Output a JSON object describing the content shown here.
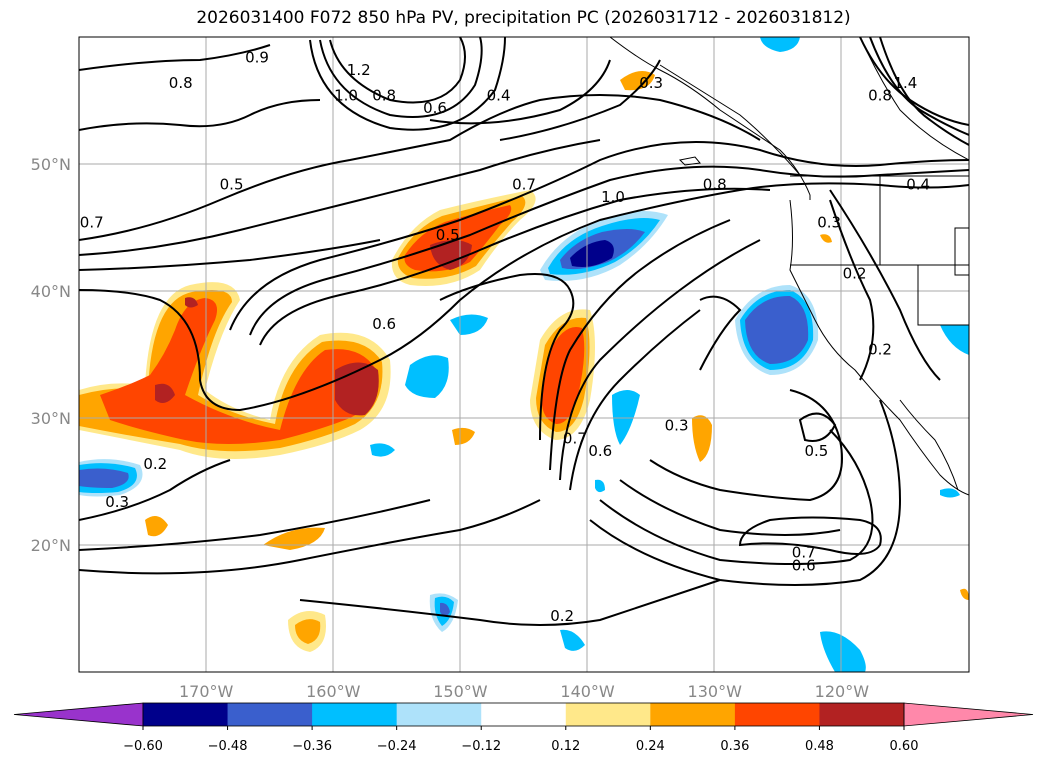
{
  "title": "2026031400 F072 850 hPa PV, precipitation PC (2026031712 - 2026031812)",
  "lat_labels": [
    {
      "text": "50°N",
      "lat": 50
    },
    {
      "text": "40°N",
      "lat": 40
    },
    {
      "text": "30°N",
      "lat": 30
    },
    {
      "text": "20°N",
      "lat": 20
    }
  ],
  "lon_labels": [
    {
      "text": "170°W",
      "lon": -170
    },
    {
      "text": "160°W",
      "lon": -160
    },
    {
      "text": "150°W",
      "lon": -150
    },
    {
      "text": "140°W",
      "lon": -140
    },
    {
      "text": "130°W",
      "lon": -130
    },
    {
      "text": "120°W",
      "lon": -120
    }
  ],
  "map_extent": {
    "lon_min": -180,
    "lon_max": -110,
    "lat_min": 10,
    "lat_max": 60
  },
  "colorbar": {
    "tick_labels": [
      "−0.60",
      "−0.48",
      "−0.36",
      "−0.24",
      "−0.12",
      "0.12",
      "0.24",
      "0.36",
      "0.48",
      "0.60"
    ],
    "colors": [
      "#9933cc",
      "#00008b",
      "#3a5fcd",
      "#00bfff",
      "#aee2fa",
      "#ffffff",
      "#ffe88a",
      "#ffa500",
      "#ff4500",
      "#b22222",
      "#ff88aa"
    ]
  },
  "contour_labels": [
    {
      "text": "1.2",
      "lon": -158,
      "lat": 57
    },
    {
      "text": "1.0",
      "lon": -159,
      "lat": 55
    },
    {
      "text": "0.8",
      "lon": -156,
      "lat": 55
    },
    {
      "text": "0.6",
      "lon": -152,
      "lat": 54
    },
    {
      "text": "0.4",
      "lon": -147,
      "lat": 55
    },
    {
      "text": "0.9",
      "lon": -166,
      "lat": 58
    },
    {
      "text": "0.8",
      "lon": -172,
      "lat": 56
    },
    {
      "text": "0.5",
      "lon": -168,
      "lat": 48
    },
    {
      "text": "0.5",
      "lon": -151,
      "lat": 44
    },
    {
      "text": "0.7",
      "lon": -145,
      "lat": 48
    },
    {
      "text": "1.0",
      "lon": -138,
      "lat": 47
    },
    {
      "text": "0.8",
      "lon": -130,
      "lat": 48
    },
    {
      "text": "0.3",
      "lon": -135,
      "lat": 56
    },
    {
      "text": "0.4",
      "lon": -114,
      "lat": 48
    },
    {
      "text": "0.3",
      "lon": -121,
      "lat": 45
    },
    {
      "text": "0.2",
      "lon": -119,
      "lat": 41
    },
    {
      "text": "0.2",
      "lon": -117,
      "lat": 35
    },
    {
      "text": "0.6",
      "lon": -156,
      "lat": 37
    },
    {
      "text": "0.7",
      "lon": -179,
      "lat": 45
    },
    {
      "text": "0.7",
      "lon": -141,
      "lat": 28
    },
    {
      "text": "0.6",
      "lon": -139,
      "lat": 27
    },
    {
      "text": "0.3",
      "lon": -133,
      "lat": 29
    },
    {
      "text": "0.5",
      "lon": -122,
      "lat": 27
    },
    {
      "text": "0.7",
      "lon": -123,
      "lat": 19
    },
    {
      "text": "0.6",
      "lon": -123,
      "lat": 18
    },
    {
      "text": "0.2",
      "lon": -174,
      "lat": 26
    },
    {
      "text": "0.3",
      "lon": -177,
      "lat": 23
    },
    {
      "text": "0.2",
      "lon": -142,
      "lat": 14
    },
    {
      "text": "1.4",
      "lon": -115,
      "lat": 56
    },
    {
      "text": "0.8",
      "lon": -117,
      "lat": 55
    }
  ]
}
